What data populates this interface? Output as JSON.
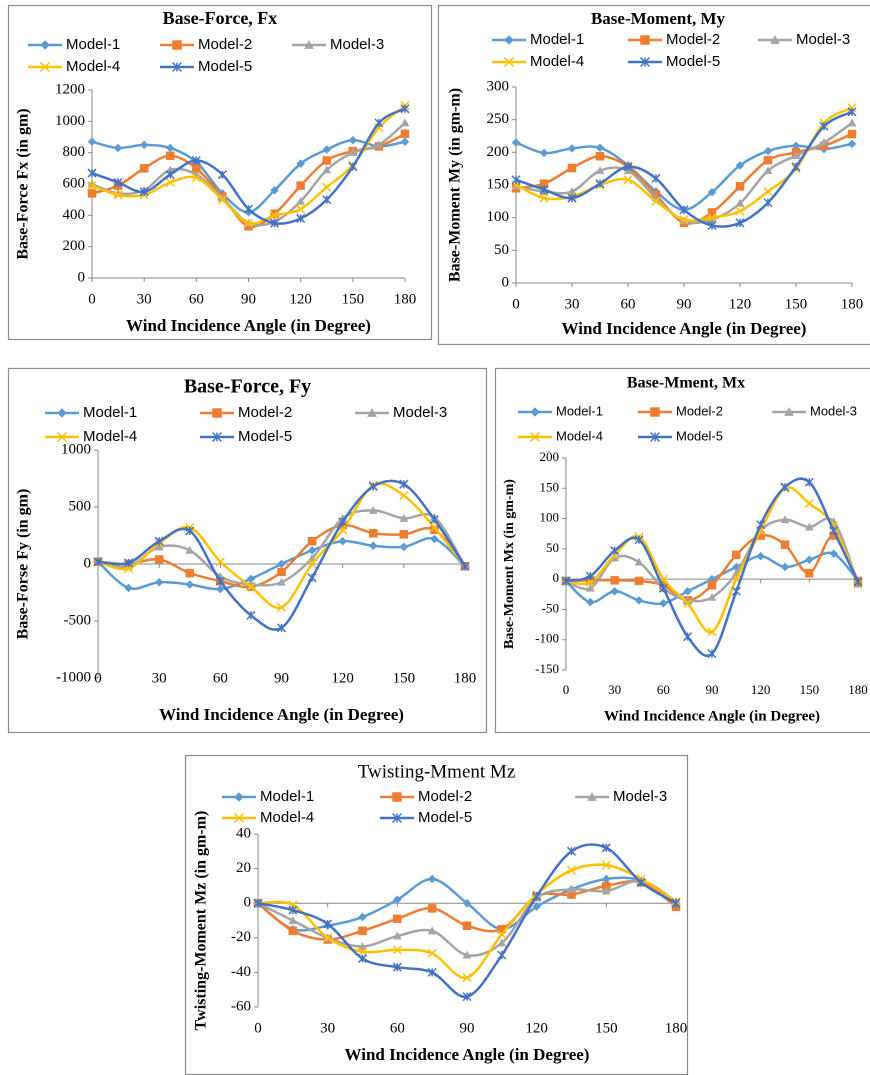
{
  "chart_data": [
    {
      "type": "line",
      "title": "Base-Force, Fx",
      "x_label": "Wind Incidence Angle (in Degree)",
      "y_label": "Base-Force Fx (in gm)",
      "x": [
        0,
        15,
        30,
        45,
        60,
        75,
        90,
        105,
        120,
        135,
        150,
        165,
        180
      ],
      "xlim": [
        0,
        180
      ],
      "xticks": [
        0,
        30,
        60,
        90,
        120,
        150,
        180
      ],
      "ylim": [
        0,
        1200
      ],
      "yticks": [
        0,
        200,
        400,
        600,
        800,
        1000,
        1200
      ],
      "smooth": true,
      "grid": false,
      "series": [
        {
          "name": "Model-1",
          "color": "#5b9bd5",
          "marker": "diamond",
          "values": [
            870,
            830,
            850,
            830,
            740,
            540,
            420,
            560,
            730,
            820,
            880,
            840,
            870
          ]
        },
        {
          "name": "Model-2",
          "color": "#ed7d31",
          "marker": "square",
          "values": [
            540,
            590,
            700,
            780,
            700,
            520,
            330,
            410,
            590,
            750,
            810,
            840,
            920
          ]
        },
        {
          "name": "Model-3",
          "color": "#a5a5a5",
          "marker": "triangle",
          "values": [
            600,
            540,
            560,
            690,
            660,
            510,
            350,
            360,
            490,
            690,
            800,
            850,
            990
          ]
        },
        {
          "name": "Model-4",
          "color": "#ffc000",
          "marker": "x",
          "values": [
            590,
            530,
            530,
            610,
            640,
            500,
            350,
            400,
            440,
            580,
            720,
            960,
            1100
          ]
        },
        {
          "name": "Model-5",
          "color": "#4472c4",
          "marker": "star",
          "values": [
            670,
            610,
            550,
            660,
            750,
            660,
            440,
            350,
            380,
            500,
            710,
            990,
            1080
          ]
        }
      ]
    },
    {
      "type": "line",
      "title": "Base-Moment,  My",
      "x_label": "Wind Incidence Angle (in Degree)",
      "y_label": "Base-Moment My (in gm-m)",
      "x": [
        0,
        15,
        30,
        45,
        60,
        75,
        90,
        105,
        120,
        135,
        150,
        165,
        180
      ],
      "xlim": [
        0,
        180
      ],
      "xticks": [
        0,
        30,
        60,
        90,
        120,
        150,
        180
      ],
      "ylim": [
        0,
        300
      ],
      "yticks": [
        0,
        50,
        100,
        150,
        200,
        250,
        300
      ],
      "smooth": true,
      "grid": false,
      "series": [
        {
          "name": "Model-1",
          "color": "#5b9bd5",
          "marker": "diamond",
          "values": [
            215,
            199,
            206,
            207,
            180,
            140,
            112,
            139,
            180,
            202,
            210,
            205,
            213
          ]
        },
        {
          "name": "Model-2",
          "color": "#ed7d31",
          "marker": "square",
          "values": [
            145,
            152,
            176,
            194,
            178,
            135,
            92,
            108,
            148,
            188,
            200,
            210,
            228
          ]
        },
        {
          "name": "Model-3",
          "color": "#a5a5a5",
          "marker": "triangle",
          "values": [
            148,
            140,
            140,
            172,
            172,
            130,
            95,
            97,
            122,
            172,
            195,
            215,
            245
          ]
        },
        {
          "name": "Model-4",
          "color": "#ffc000",
          "marker": "x",
          "values": [
            150,
            130,
            132,
            150,
            158,
            125,
            97,
            100,
            110,
            140,
            175,
            245,
            268
          ]
        },
        {
          "name": "Model-5",
          "color": "#4472c4",
          "marker": "star",
          "values": [
            158,
            143,
            130,
            152,
            178,
            160,
            112,
            88,
            92,
            123,
            178,
            240,
            262
          ]
        }
      ]
    },
    {
      "type": "line",
      "title": "Base-Force,  Fy",
      "x_label": "Wind Incidence Angle (in Degree)",
      "y_label": "Base-Forse Fy (in gm)",
      "x": [
        0,
        15,
        30,
        45,
        60,
        75,
        90,
        105,
        120,
        135,
        150,
        165,
        180
      ],
      "xlim": [
        0,
        180
      ],
      "xticks": [
        0,
        30,
        60,
        90,
        120,
        150,
        180
      ],
      "ylim": [
        -1000,
        1000
      ],
      "yticks": [
        -1000,
        -500,
        0,
        500,
        1000
      ],
      "smooth": true,
      "grid": false,
      "series": [
        {
          "name": "Model-1",
          "color": "#5b9bd5",
          "marker": "diamond",
          "values": [
            20,
            -210,
            -160,
            -180,
            -220,
            -130,
            0,
            120,
            200,
            160,
            150,
            220,
            -20
          ]
        },
        {
          "name": "Model-2",
          "color": "#ed7d31",
          "marker": "square",
          "values": [
            20,
            0,
            40,
            -80,
            -150,
            -200,
            -70,
            200,
            340,
            270,
            260,
            300,
            -20
          ]
        },
        {
          "name": "Model-3",
          "color": "#a5a5a5",
          "marker": "triangle",
          "values": [
            20,
            -20,
            150,
            120,
            -110,
            -180,
            -160,
            50,
            400,
            470,
            400,
            410,
            -20
          ]
        },
        {
          "name": "Model-4",
          "color": "#ffc000",
          "marker": "x",
          "values": [
            20,
            -40,
            180,
            320,
            20,
            -200,
            -380,
            0,
            300,
            690,
            600,
            320,
            -20
          ]
        },
        {
          "name": "Model-5",
          "color": "#4472c4",
          "marker": "star",
          "values": [
            20,
            10,
            200,
            290,
            -150,
            -450,
            -560,
            -120,
            370,
            680,
            700,
            390,
            -20
          ]
        }
      ]
    },
    {
      "type": "line",
      "title": "Base-Mment, Mx",
      "x_label": "Wind Incidence Angle (in Degree)",
      "y_label": "Base-Moment Mx (in gm-m)",
      "x": [
        0,
        15,
        30,
        45,
        60,
        75,
        90,
        105,
        120,
        135,
        150,
        165,
        180
      ],
      "xlim": [
        0,
        180
      ],
      "xticks": [
        0,
        30,
        60,
        90,
        120,
        150,
        180
      ],
      "ylim": [
        -150,
        200
      ],
      "yticks": [
        -150,
        -100,
        -50,
        0,
        50,
        100,
        150,
        200
      ],
      "smooth": true,
      "grid": false,
      "series": [
        {
          "name": "Model-1",
          "color": "#5b9bd5",
          "marker": "diamond",
          "values": [
            -3,
            -38,
            -20,
            -35,
            -40,
            -20,
            0,
            20,
            38,
            20,
            32,
            42,
            -3
          ]
        },
        {
          "name": "Model-2",
          "color": "#ed7d31",
          "marker": "square",
          "values": [
            -3,
            -2,
            -2,
            -3,
            -10,
            -35,
            -10,
            40,
            72,
            57,
            10,
            72,
            -3
          ]
        },
        {
          "name": "Model-3",
          "color": "#a5a5a5",
          "marker": "triangle",
          "values": [
            -3,
            -15,
            35,
            28,
            -15,
            -35,
            -30,
            10,
            80,
            98,
            86,
            95,
            -8
          ]
        },
        {
          "name": "Model-4",
          "color": "#ffc000",
          "marker": "x",
          "values": [
            -3,
            -5,
            40,
            70,
            0,
            -40,
            -87,
            0,
            80,
            150,
            125,
            88,
            -8
          ]
        },
        {
          "name": "Model-5",
          "color": "#4472c4",
          "marker": "star",
          "values": [
            -3,
            5,
            47,
            65,
            -15,
            -95,
            -123,
            -20,
            90,
            152,
            160,
            80,
            -5
          ]
        }
      ]
    },
    {
      "type": "line",
      "title": "Twisting-Mment Mz",
      "x_label": "Wind Incidence Angle (in Degree)",
      "y_label": "Twisting-Moment  Mz (in gm-m)",
      "x": [
        0,
        15,
        30,
        45,
        60,
        75,
        90,
        105,
        120,
        135,
        150,
        165,
        180
      ],
      "xlim": [
        0,
        180
      ],
      "xticks": [
        0,
        30,
        60,
        90,
        120,
        150,
        180
      ],
      "ylim": [
        -60,
        40
      ],
      "yticks": [
        -60,
        -40,
        -20,
        0,
        20,
        40
      ],
      "smooth": true,
      "grid": false,
      "series": [
        {
          "name": "Model-1",
          "color": "#5b9bd5",
          "marker": "diamond",
          "values": [
            0,
            -15,
            -13,
            -8,
            2,
            14,
            0,
            -15,
            -2,
            8,
            14,
            13,
            0
          ]
        },
        {
          "name": "Model-2",
          "color": "#ed7d31",
          "marker": "square",
          "values": [
            0,
            -16,
            -21,
            -16,
            -9,
            -3,
            -13,
            -15,
            4,
            5,
            10,
            12,
            -2
          ]
        },
        {
          "name": "Model-3",
          "color": "#a5a5a5",
          "marker": "triangle",
          "values": [
            0,
            -10,
            -20,
            -25,
            -19,
            -16,
            -30,
            -23,
            3,
            8,
            7,
            13,
            1
          ]
        },
        {
          "name": "Model-4",
          "color": "#ffc000",
          "marker": "x",
          "values": [
            0,
            -1,
            -20,
            -28,
            -27,
            -29,
            -43,
            -18,
            5,
            19,
            22,
            14,
            1
          ]
        },
        {
          "name": "Model-5",
          "color": "#4472c4",
          "marker": "star",
          "values": [
            0,
            -4,
            -12,
            -32,
            -37,
            -40,
            -54,
            -30,
            4,
            30,
            32,
            12,
            0
          ]
        }
      ]
    }
  ]
}
